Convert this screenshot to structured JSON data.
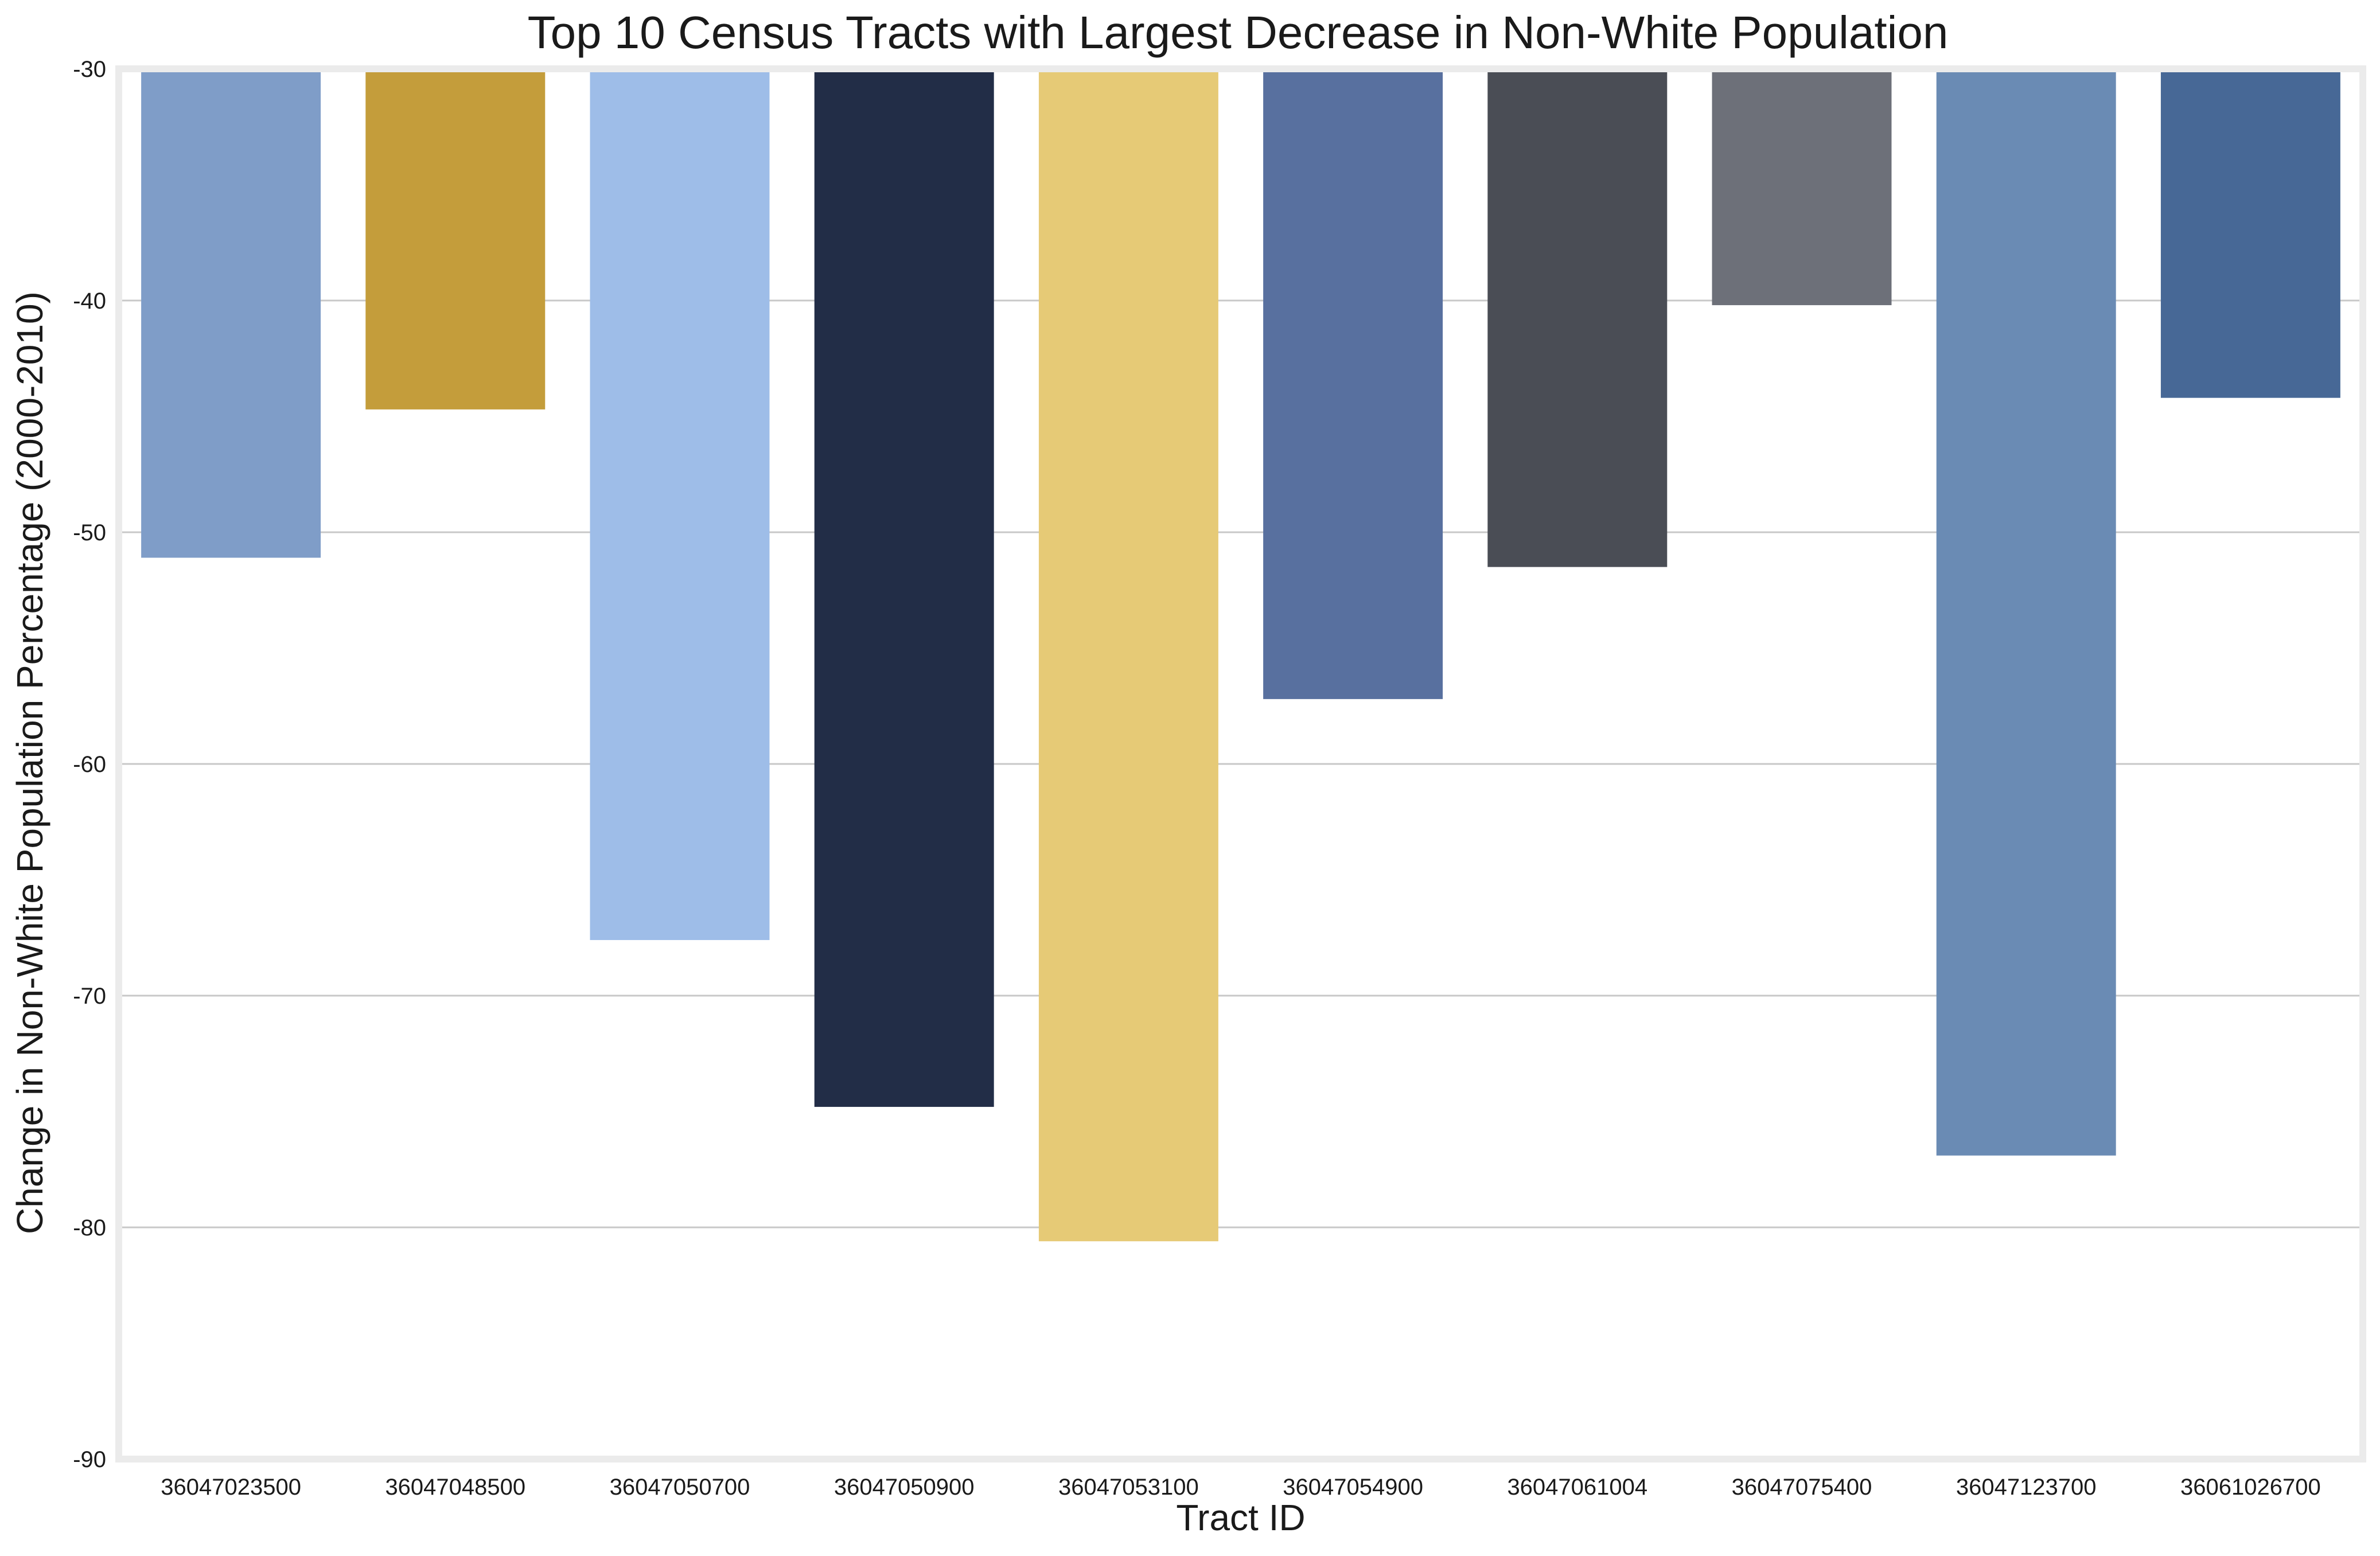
{
  "chart_data": {
    "type": "bar",
    "title": "Top 10 Census Tracts with Largest Decrease in Non-White Population",
    "xlabel": "Tract ID",
    "ylabel": "Change in Non-White Population Percentage (2000-2010)",
    "ylim": [
      -90,
      -30
    ],
    "yticks": [
      "-90",
      "-80",
      "-70",
      "-60",
      "-50",
      "-40",
      "-30"
    ],
    "ytick_values": [
      -90,
      -80,
      -70,
      -60,
      -50,
      -40,
      -30
    ],
    "grid": "horizontal",
    "categories": [
      "36047023500",
      "36047048500",
      "36047050700",
      "36047050900",
      "36047053100",
      "36047054900",
      "36047061004",
      "36047075400",
      "36047123700",
      "36061026700"
    ],
    "values": [
      -51.1,
      -44.7,
      -67.6,
      -74.8,
      -80.6,
      -57.2,
      -51.5,
      -40.2,
      -76.9,
      -44.2
    ],
    "colors": [
      "#7f9dc8",
      "#c49d3b",
      "#9ebde8",
      "#222d47",
      "#e6ca76",
      "#58709f",
      "#4a4d55",
      "#6d7079",
      "#6a8bb4",
      "#476896"
    ]
  }
}
